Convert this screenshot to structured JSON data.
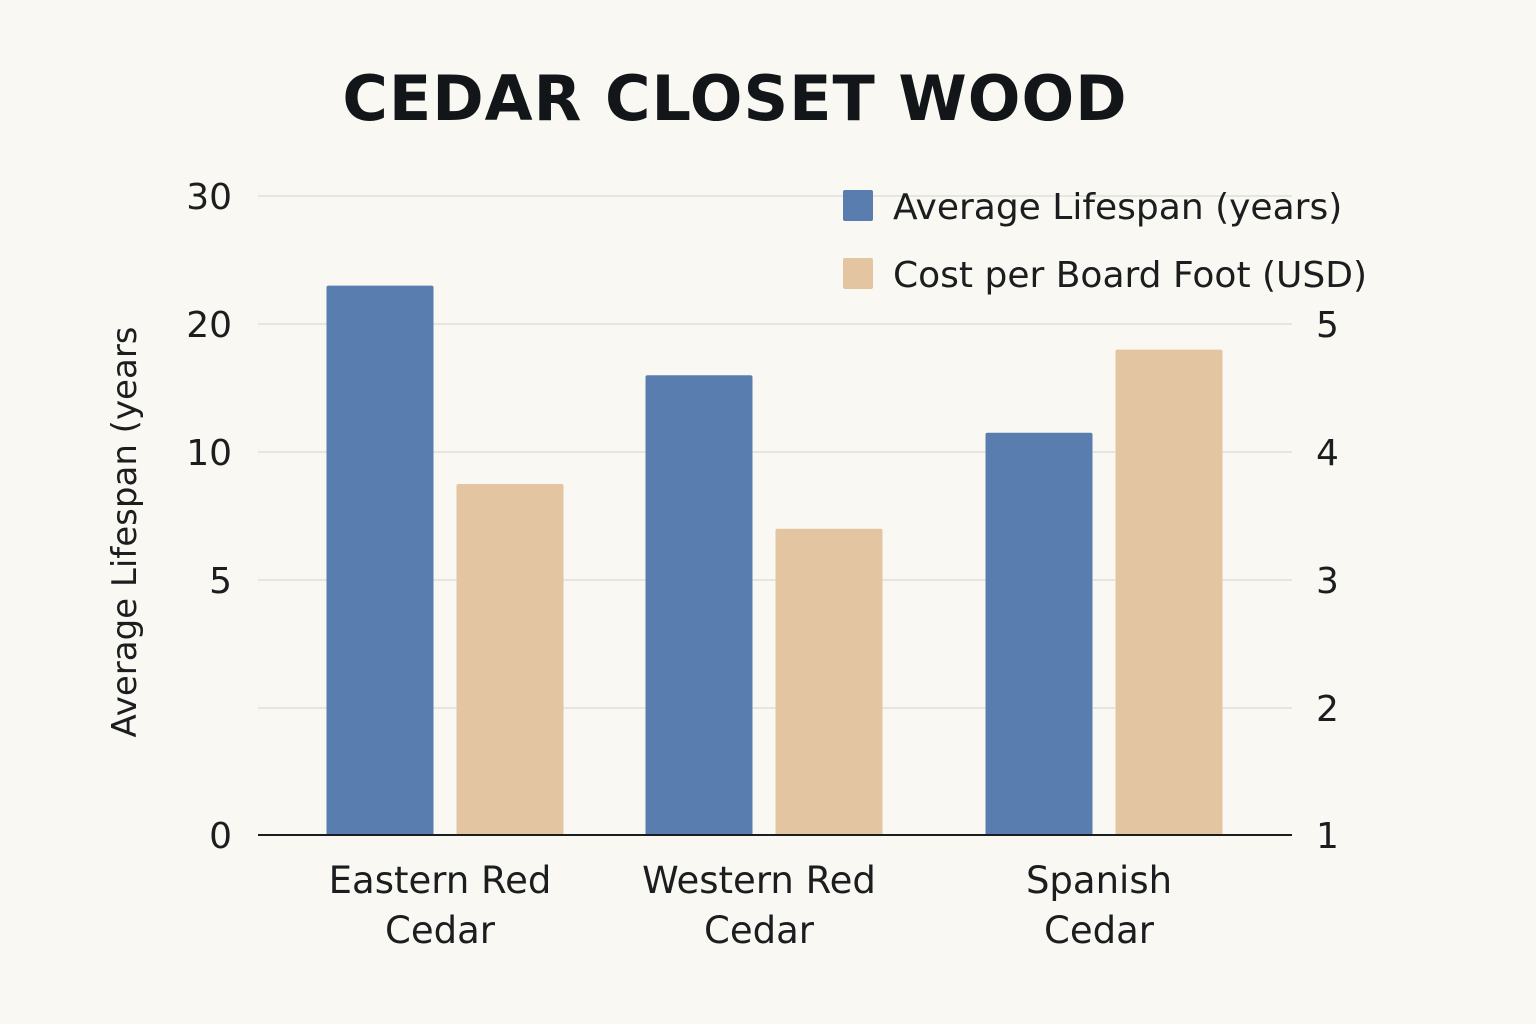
{
  "chart_data": {
    "type": "bar",
    "title": "CEDAR CLOSET WOOD",
    "categories": [
      [
        "Eastern Red",
        "Cedar"
      ],
      [
        "Western Red",
        "Cedar"
      ],
      [
        "Spanish",
        "Cedar"
      ]
    ],
    "series": [
      {
        "name": "Average Lifespan (years)",
        "axis": "left",
        "color": "#5a7db0",
        "values": [
          23,
          16,
          11.5
        ]
      },
      {
        "name": "Cost per Board Foot (USD)",
        "axis": "right",
        "color": "#e3c6a1",
        "values": [
          3.75,
          3.4,
          4.8
        ]
      }
    ],
    "y_left": {
      "label": "Average Lifespan (years",
      "ticks": [
        "0",
        "5",
        "10",
        "20",
        "30"
      ],
      "tick_values": [
        0,
        5,
        10,
        20,
        30
      ],
      "range": [
        0,
        30
      ]
    },
    "y_right": {
      "label": "",
      "ticks": [
        "1",
        "2",
        "3",
        "4",
        "5"
      ],
      "tick_values": [
        1,
        2,
        3,
        4,
        5
      ],
      "range": [
        1,
        5.4
      ]
    },
    "grid": true,
    "legend_position": "top-right"
  }
}
